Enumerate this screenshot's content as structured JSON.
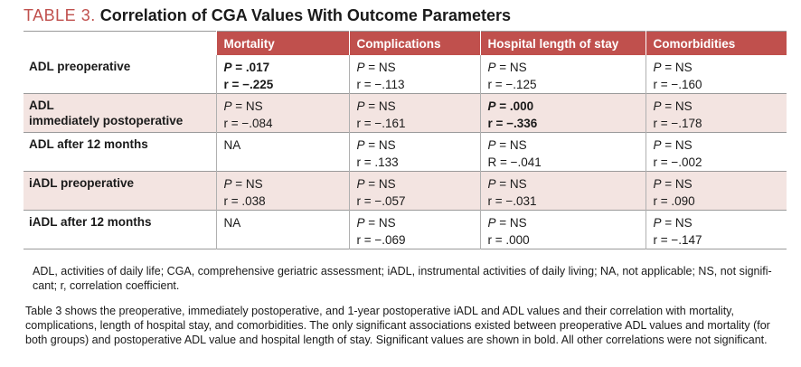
{
  "title": {
    "label": "TABLE 3.",
    "text": "Correlation of CGA Values With Outcome Parameters"
  },
  "columns": [
    "Mortality",
    "Complications",
    "Hospital length of stay",
    "Comorbidities"
  ],
  "rows": [
    {
      "label": "ADL preoperative",
      "cells": [
        {
          "type": "pr",
          "p": "= .017",
          "r": "r = −.225",
          "bold": true
        },
        {
          "type": "pr",
          "p": "= NS",
          "r": "r = −.113",
          "bold": false
        },
        {
          "type": "pr",
          "p": "= NS",
          "r": "r = −.125",
          "bold": false
        },
        {
          "type": "pr",
          "p": "= NS",
          "r": "r = −.160",
          "bold": false
        }
      ]
    },
    {
      "label": "ADL\nimmediately postoperative",
      "cells": [
        {
          "type": "pr",
          "p": "= NS",
          "r": "r = −.084",
          "bold": false
        },
        {
          "type": "pr",
          "p": "= NS",
          "r": "r = −.161",
          "bold": false
        },
        {
          "type": "pr",
          "p": "= .000",
          "r": "r = −.336",
          "bold": true
        },
        {
          "type": "pr",
          "p": "= NS",
          "r": "r = −.178",
          "bold": false
        }
      ]
    },
    {
      "label": "ADL after 12 months",
      "cells": [
        {
          "type": "na",
          "text": "NA"
        },
        {
          "type": "pr",
          "p": "= NS",
          "r": "r = .133",
          "bold": false
        },
        {
          "type": "pr",
          "p": "= NS",
          "r": "R = −.041",
          "bold": false
        },
        {
          "type": "pr",
          "p": "= NS",
          "r": "r = −.002",
          "bold": false
        }
      ]
    },
    {
      "label": "iADL preoperative",
      "cells": [
        {
          "type": "pr",
          "p": "= NS",
          "r": "r = .038",
          "bold": false
        },
        {
          "type": "pr",
          "p": "= NS",
          "r": "r = −.057",
          "bold": false
        },
        {
          "type": "pr",
          "p": "= NS",
          "r": "r = −.031",
          "bold": false
        },
        {
          "type": "pr",
          "p": "= NS",
          "r": "r = .090",
          "bold": false
        }
      ]
    },
    {
      "label": "iADL after 12 months",
      "cells": [
        {
          "type": "na",
          "text": "NA"
        },
        {
          "type": "pr",
          "p": "= NS",
          "r": "r = −.069",
          "bold": false
        },
        {
          "type": "pr",
          "p": "= NS",
          "r": "r = .000",
          "bold": false
        },
        {
          "type": "pr",
          "p": "= NS",
          "r": "r = −.147",
          "bold": false
        }
      ]
    }
  ],
  "p_symbol": "P",
  "footnote_abbrev": "ADL, activities of daily life; CGA, comprehensive geriatric assessment; iADL, instrumental activities of daily living; NA, not applicable; NS, not signifi-cant; r, correlation coefficient.",
  "footnote_desc": "Table 3 shows the preoperative, immediately postoperative, and 1-year postoperative iADL and ADL values and their correlation with mortality, complications, length of hospital stay, and comorbidities. The only significant associations existed between preoperative ADL values and mortality (for both groups) and postoperative ADL value and hospital length of stay. Significant values are shown in bold. All other correlations were not significant.",
  "colors": {
    "header_bg": "#c0504d",
    "shade_bg": "#f3e4e1",
    "title_label": "#c0504d"
  }
}
